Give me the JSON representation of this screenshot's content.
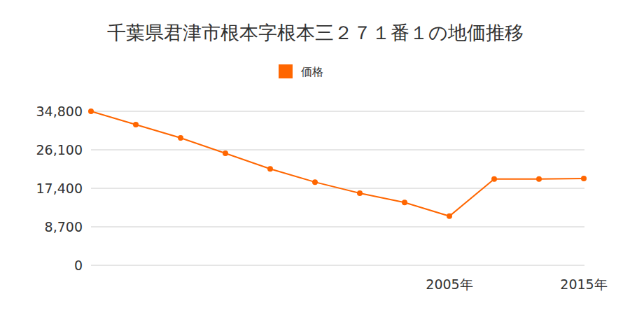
{
  "chart_data": {
    "type": "line",
    "title": "千葉県君津市根本字根本三２７１番１の地価推移",
    "categories": [
      null,
      null,
      null,
      null,
      null,
      null,
      null,
      null,
      "2005年",
      null,
      null,
      "2015年"
    ],
    "series": [
      {
        "name": "価格",
        "color": "#ff6600",
        "marker": "circle",
        "values": [
          34800,
          31800,
          28800,
          25300,
          21800,
          18800,
          16300,
          14200,
          11100,
          19500,
          19500,
          19600
        ]
      }
    ],
    "ylim": [
      0,
      34800
    ],
    "yticks": [
      0,
      {
        "value": 8700,
        "label": "8,700"
      },
      {
        "value": 17400,
        "label": "17,400"
      },
      {
        "value": 26100,
        "label": "26,100"
      },
      {
        "value": 34800,
        "label": "34,800"
      }
    ],
    "grid": true,
    "legend": "top"
  }
}
